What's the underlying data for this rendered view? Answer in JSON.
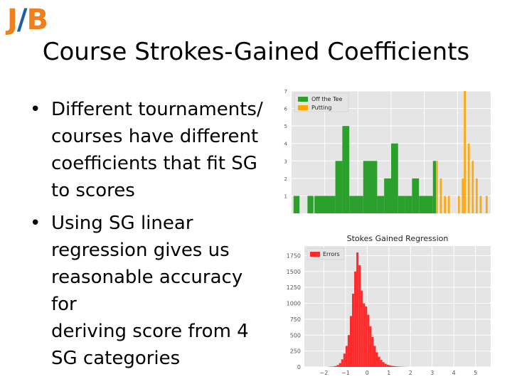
{
  "logo": {
    "j": "J",
    "slash": "/",
    "b": "B"
  },
  "title": "Course Strokes-Gained Coefficients",
  "bullets": [
    {
      "lines": [
        "Different tournaments/",
        "courses have different",
        "coefficients that fit SG",
        "to scores"
      ]
    },
    {
      "lines": [
        "Using SG linear",
        "regression gives us",
        "reasonable accuracy for",
        "deriving score from 4",
        "SG categories"
      ]
    }
  ],
  "chart_data": [
    {
      "type": "bar",
      "ylim": [
        0,
        7
      ],
      "yticks": [
        7,
        6,
        5,
        4,
        3,
        2,
        1
      ],
      "grid": true,
      "legend": "top-left",
      "series": [
        {
          "name": "Off the Tee",
          "color": "#2ca02c",
          "bars": [
            [
              0.01,
              0.04,
              1
            ],
            [
              0.08,
              0.11,
              1
            ],
            [
              0.115,
              0.15,
              1
            ],
            [
              0.15,
              0.22,
              1
            ],
            [
              0.22,
              0.255,
              3
            ],
            [
              0.255,
              0.29,
              5
            ],
            [
              0.29,
              0.325,
              1
            ],
            [
              0.325,
              0.36,
              1
            ],
            [
              0.36,
              0.43,
              3
            ],
            [
              0.43,
              0.465,
              1
            ],
            [
              0.465,
              0.5,
              2
            ],
            [
              0.5,
              0.535,
              4
            ],
            [
              0.535,
              0.57,
              1
            ],
            [
              0.57,
              0.605,
              1
            ],
            [
              0.605,
              0.64,
              2
            ],
            [
              0.64,
              0.71,
              1
            ],
            [
              0.71,
              0.725,
              3
            ]
          ]
        },
        {
          "name": "Putting",
          "color": "#ffa500",
          "bars": [
            [
              0.725,
              0.735,
              3
            ],
            [
              0.745,
              0.755,
              2
            ],
            [
              0.765,
              0.775,
              1
            ],
            [
              0.785,
              0.795,
              1
            ],
            [
              0.835,
              0.845,
              1
            ],
            [
              0.855,
              0.865,
              2
            ],
            [
              0.865,
              0.875,
              7
            ],
            [
              0.885,
              0.895,
              4
            ],
            [
              0.905,
              0.915,
              3
            ],
            [
              0.925,
              0.935,
              2
            ],
            [
              0.945,
              0.955,
              1
            ],
            [
              0.975,
              0.985,
              1
            ]
          ]
        }
      ]
    },
    {
      "type": "bar",
      "title": "Stokes Gained Regression",
      "xlim": [
        -2.9,
        5.7
      ],
      "ylim": [
        0,
        1900
      ],
      "xticks": [
        -2,
        -1,
        0,
        1,
        2,
        3,
        4,
        5
      ],
      "yticks": [
        0,
        250,
        500,
        750,
        1000,
        1250,
        1500,
        1750
      ],
      "grid": true,
      "legend": "top-left",
      "series": [
        {
          "name": "Errors",
          "color": "#ff2a2a",
          "bin_start": -1.8,
          "bin_width": 0.1,
          "values": [
            3,
            5,
            8,
            15,
            30,
            60,
            120,
            210,
            330,
            500,
            800,
            1150,
            1500,
            1800,
            1600,
            1200,
            1000,
            950,
            820,
            640,
            470,
            330,
            230,
            160,
            110,
            75,
            50,
            35,
            25,
            18,
            13,
            9,
            6,
            4,
            3,
            2,
            1
          ]
        }
      ]
    }
  ]
}
